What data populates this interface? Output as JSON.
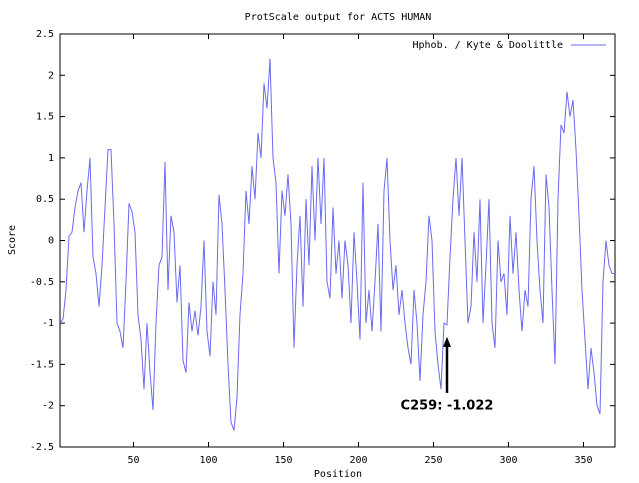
{
  "chart_data": {
    "type": "line",
    "title": "ProtScale output for ACTS HUMAN",
    "x_label": "Position",
    "y_label": "Score",
    "legend": "upper right",
    "xlim": [
      1,
      371
    ],
    "xticks": [
      50,
      100,
      150,
      200,
      250,
      300,
      350
    ],
    "ylim": [
      -2.5,
      2.5
    ],
    "yticks": [
      2.5,
      2,
      1.5,
      1,
      0.5,
      0,
      -0.5,
      -1,
      -1.5,
      -2,
      -2.5
    ],
    "series": [
      {
        "name": "Hphob. / Kyte & Doolittle",
        "color": "#6a6af0",
        "x": [
          1,
          3,
          5,
          7,
          9,
          11,
          13,
          15,
          17,
          19,
          21,
          23,
          25,
          27,
          29,
          31,
          33,
          35,
          37,
          39,
          41,
          43,
          45,
          47,
          49,
          51,
          53,
          55,
          57,
          59,
          61,
          63,
          65,
          67,
          69,
          71,
          73,
          75,
          77,
          79,
          81,
          83,
          85,
          87,
          89,
          91,
          93,
          95,
          97,
          99,
          101,
          103,
          105,
          107,
          109,
          111,
          113,
          115,
          117,
          119,
          121,
          123,
          125,
          127,
          129,
          131,
          133,
          135,
          137,
          139,
          141,
          143,
          145,
          147,
          149,
          151,
          153,
          155,
          157,
          159,
          161,
          163,
          165,
          167,
          169,
          171,
          173,
          175,
          177,
          179,
          181,
          183,
          185,
          187,
          189,
          191,
          193,
          195,
          197,
          199,
          201,
          203,
          205,
          207,
          209,
          211,
          213,
          215,
          217,
          219,
          221,
          223,
          225,
          227,
          229,
          231,
          233,
          235,
          237,
          239,
          241,
          243,
          245,
          247,
          249,
          251,
          253,
          255,
          257,
          259,
          261,
          263,
          265,
          267,
          269,
          271,
          273,
          275,
          277,
          279,
          281,
          283,
          285,
          287,
          289,
          291,
          293,
          295,
          297,
          299,
          301,
          303,
          305,
          307,
          309,
          311,
          313,
          315,
          317,
          319,
          321,
          323,
          325,
          327,
          329,
          331,
          333,
          335,
          337,
          339,
          341,
          343,
          345,
          347,
          349,
          351,
          353,
          355,
          357,
          359,
          361,
          363,
          365,
          367,
          369,
          371
        ],
        "values": [
          -1.0,
          -0.95,
          -0.6,
          0.05,
          0.1,
          0.4,
          0.6,
          0.7,
          0.1,
          0.6,
          1.0,
          -0.2,
          -0.4,
          -0.8,
          -0.3,
          0.4,
          1.1,
          1.1,
          0.2,
          -1.0,
          -1.1,
          -1.3,
          -0.5,
          0.45,
          0.35,
          0.1,
          -0.9,
          -1.2,
          -1.8,
          -1.0,
          -1.6,
          -2.05,
          -1.0,
          -0.3,
          -0.2,
          0.95,
          -0.6,
          0.3,
          0.1,
          -0.75,
          -0.3,
          -1.45,
          -1.6,
          -0.75,
          -1.1,
          -0.85,
          -1.15,
          -0.8,
          0.0,
          -1.1,
          -1.4,
          -0.5,
          -0.9,
          0.55,
          0.2,
          -0.6,
          -1.5,
          -2.2,
          -2.3,
          -1.9,
          -0.9,
          -0.4,
          0.6,
          0.2,
          0.9,
          0.5,
          1.3,
          1.0,
          1.9,
          1.6,
          2.2,
          1.0,
          0.7,
          -0.4,
          0.6,
          0.3,
          0.8,
          0.2,
          -1.3,
          -0.3,
          0.3,
          -0.8,
          0.5,
          -0.3,
          0.9,
          0.0,
          1.0,
          0.2,
          1.0,
          -0.5,
          -0.7,
          0.4,
          -0.4,
          0.0,
          -0.7,
          0.0,
          -0.3,
          -1.0,
          0.1,
          -0.5,
          -1.2,
          0.7,
          -1.0,
          -0.6,
          -1.1,
          -0.5,
          0.2,
          -1.1,
          0.6,
          1.0,
          0.0,
          -0.6,
          -0.3,
          -0.9,
          -0.6,
          -1.0,
          -1.3,
          -1.5,
          -0.6,
          -1.0,
          -1.7,
          -0.9,
          -0.5,
          0.3,
          0.0,
          -1.1,
          -1.5,
          -1.8,
          -1.0,
          -1.022,
          -0.2,
          0.5,
          1.0,
          0.3,
          1.0,
          0.0,
          -1.0,
          -0.8,
          0.1,
          -0.5,
          0.5,
          -1.0,
          -0.3,
          0.5,
          -1.0,
          -1.3,
          0.0,
          -0.5,
          -0.4,
          -0.9,
          0.3,
          -0.4,
          0.1,
          -0.6,
          -1.1,
          -0.6,
          -0.8,
          0.5,
          0.9,
          0.0,
          -0.6,
          -1.0,
          0.8,
          0.4,
          -0.6,
          -1.5,
          0.5,
          1.4,
          1.3,
          1.8,
          1.5,
          1.7,
          1.1,
          0.3,
          -0.6,
          -1.2,
          -1.8,
          -1.3,
          -1.6,
          -2.0,
          -2.1,
          -0.5,
          0.0,
          -0.3,
          -0.4,
          -0.4
        ]
      }
    ],
    "annotations": [
      {
        "text": "C259: -1.022",
        "x": 259,
        "y": -1.022
      }
    ]
  }
}
